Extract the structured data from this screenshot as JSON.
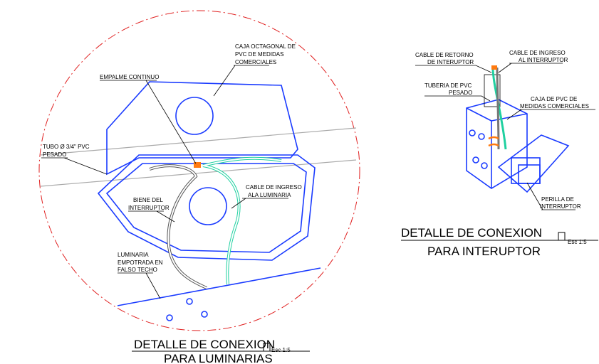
{
  "left_detail": {
    "labels": [
      {
        "lines": [
          "CAJA OCTAGONAL DE",
          "PVC DE MEDIDAS",
          "COMERCIALES"
        ]
      },
      {
        "lines": [
          "EMPALME CONTINUO"
        ]
      },
      {
        "lines": [
          "TUBO Ø 3/4\" PVC",
          "PESADO"
        ]
      },
      {
        "lines": [
          "BIENE DEL",
          "INTERRUPTOR"
        ]
      },
      {
        "lines": [
          "CABLE DE INGRESO",
          "ALA LUMINARIA"
        ]
      },
      {
        "lines": [
          "LUMINARIA",
          "EMPOTRADA EN",
          "FALSO TECHO"
        ]
      }
    ],
    "title": {
      "line1": "DETALLE DE CONEXION",
      "line2": "PARA LUMINARIAS",
      "scale": "Esc 1:5"
    }
  },
  "right_detail": {
    "labels": [
      {
        "lines": [
          "CABLE DE RETORNO",
          "DE INTERUPTOR"
        ]
      },
      {
        "lines": [
          "CABLE DE INGRESO",
          "AL INTERRUPTOR"
        ]
      },
      {
        "lines": [
          "TUBERIA DE PVC",
          "PESADO"
        ]
      },
      {
        "lines": [
          "CAJA DE PVC DE",
          "MEDIDAS COMERCIALES"
        ]
      },
      {
        "lines": [
          "PERILLA DE",
          "INTERRUPTOR"
        ]
      }
    ],
    "title": {
      "line1": "DETALLE DE CONEXION",
      "line2": "PARA INTERUPTOR",
      "scale": "Esc 1:5"
    }
  }
}
